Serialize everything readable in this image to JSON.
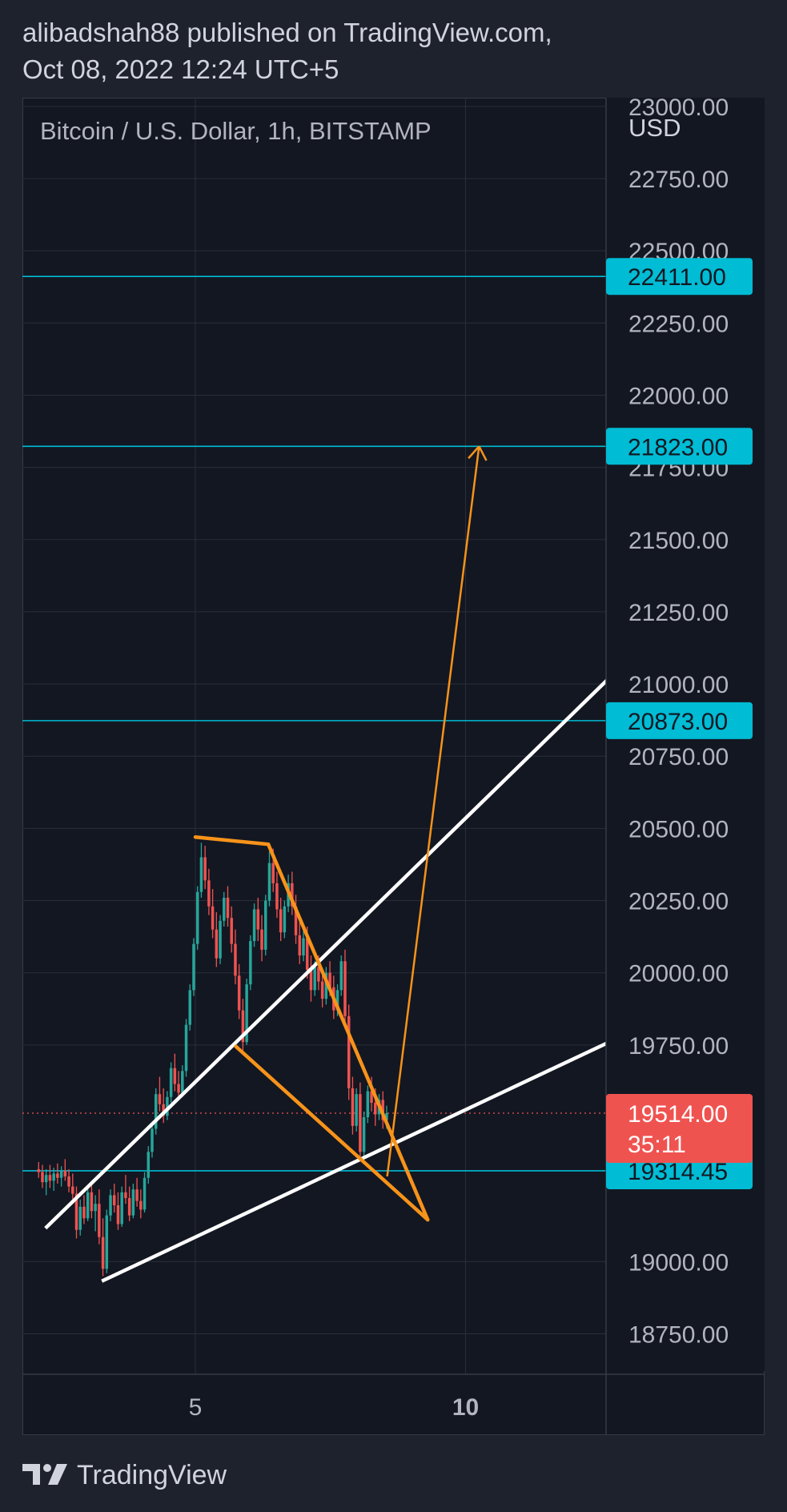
{
  "header": {
    "line1": "alibadshah88 published on TradingView.com,",
    "line2": "Oct 08, 2022 12:24 UTC+5"
  },
  "chart_data": {
    "type": "candlestick",
    "symbol_label": "Bitcoin / U.S. Dollar, 1h, BITSTAMP",
    "currency": "USD",
    "y_ticks": [
      23000,
      22750,
      22500,
      22250,
      22000,
      21750,
      21500,
      21250,
      21000,
      20750,
      20500,
      20250,
      20000,
      19750,
      19000,
      18750
    ],
    "y_tick_labels": [
      "23000.00",
      "22750.00",
      "22500.00",
      "22250.00",
      "22000.00",
      "21750.00",
      "21500.00",
      "21250.00",
      "21000.00",
      "20750.00",
      "20500.00",
      "20250.00",
      "20000.00",
      "19750.00",
      "19000.00",
      "18750.00"
    ],
    "ylim": [
      18610,
      23030
    ],
    "x_ticks": [
      {
        "day": 5,
        "label": "5"
      },
      {
        "day": 10,
        "label": "10"
      }
    ],
    "xlim": [
      1.8,
      12.6
    ],
    "grid": true,
    "horizontal_levels": [
      {
        "price": 22411.0,
        "label": "22411.00",
        "color": "#00bcd4"
      },
      {
        "price": 21823.0,
        "label": "21823.00",
        "color": "#00bcd4"
      },
      {
        "price": 20873.0,
        "label": "20873.00",
        "color": "#00bcd4"
      },
      {
        "price": 19314.45,
        "label": "19314.45",
        "color": "#00bcd4"
      }
    ],
    "last_price": {
      "price": 19514.0,
      "label": "19514.00",
      "countdown": "35:11",
      "color": "#ef5350"
    },
    "channel_lines": [
      {
        "points": [
          [
            2.25,
            19120
          ],
          [
            12.6,
            21010
          ]
        ],
        "color": "#ffffff"
      },
      {
        "points": [
          [
            3.3,
            18935
          ],
          [
            12.6,
            19755
          ]
        ],
        "color": "#ffffff"
      }
    ],
    "wedge": [
      {
        "points": [
          [
            5.0,
            20470
          ],
          [
            6.35,
            20445
          ]
        ],
        "color": "#f7931a"
      },
      {
        "points": [
          [
            6.35,
            20445
          ],
          [
            9.3,
            19145
          ]
        ],
        "color": "#f7931a"
      },
      {
        "points": [
          [
            5.75,
            19745
          ],
          [
            9.3,
            19145
          ]
        ],
        "color": "#f7931a"
      }
    ],
    "projection": {
      "points": [
        [
          8.55,
          19295
        ],
        [
          10.25,
          21823
        ]
      ],
      "color": "#f7931a"
    },
    "candle_colors": {
      "up": "#26a69a",
      "down": "#ef5350"
    },
    "candles": [
      [
        2.1,
        19320,
        19345,
        19290,
        19310
      ],
      [
        2.17,
        19310,
        19335,
        19255,
        19275
      ],
      [
        2.24,
        19275,
        19320,
        19230,
        19300
      ],
      [
        2.31,
        19300,
        19335,
        19255,
        19280
      ],
      [
        2.38,
        19280,
        19325,
        19245,
        19305
      ],
      [
        2.45,
        19305,
        19340,
        19270,
        19290
      ],
      [
        2.52,
        19290,
        19330,
        19260,
        19315
      ],
      [
        2.59,
        19315,
        19355,
        19280,
        19295
      ],
      [
        2.66,
        19295,
        19320,
        19240,
        19260
      ],
      [
        2.73,
        19260,
        19305,
        19215,
        19235
      ],
      [
        2.8,
        19235,
        19260,
        19080,
        19110
      ],
      [
        2.87,
        19110,
        19215,
        19090,
        19190
      ],
      [
        2.94,
        19190,
        19230,
        19130,
        19150
      ],
      [
        3.01,
        19150,
        19260,
        19140,
        19240
      ],
      [
        3.08,
        19240,
        19280,
        19150,
        19175
      ],
      [
        3.15,
        19175,
        19230,
        19105,
        19200
      ],
      [
        3.22,
        19200,
        19250,
        19060,
        19085
      ],
      [
        3.29,
        19085,
        19150,
        18950,
        18975
      ],
      [
        3.36,
        18975,
        19180,
        18960,
        19160
      ],
      [
        3.43,
        19160,
        19250,
        19140,
        19230
      ],
      [
        3.5,
        19230,
        19270,
        19170,
        19195
      ],
      [
        3.57,
        19195,
        19240,
        19110,
        19130
      ],
      [
        3.64,
        19130,
        19260,
        19120,
        19240
      ],
      [
        3.71,
        19240,
        19300,
        19200,
        19220
      ],
      [
        3.78,
        19220,
        19260,
        19140,
        19160
      ],
      [
        3.85,
        19160,
        19270,
        19150,
        19250
      ],
      [
        3.92,
        19250,
        19290,
        19190,
        19210
      ],
      [
        3.99,
        19210,
        19250,
        19150,
        19180
      ],
      [
        4.06,
        19180,
        19310,
        19170,
        19290
      ],
      [
        4.13,
        19290,
        19400,
        19270,
        19380
      ],
      [
        4.2,
        19380,
        19480,
        19360,
        19460
      ],
      [
        4.27,
        19460,
        19600,
        19440,
        19580
      ],
      [
        4.34,
        19580,
        19640,
        19520,
        19545
      ],
      [
        4.41,
        19545,
        19600,
        19480,
        19505
      ],
      [
        4.48,
        19505,
        19590,
        19490,
        19570
      ],
      [
        4.55,
        19570,
        19690,
        19550,
        19670
      ],
      [
        4.62,
        19670,
        19720,
        19590,
        19615
      ],
      [
        4.69,
        19615,
        19660,
        19560,
        19585
      ],
      [
        4.76,
        19585,
        19680,
        19570,
        19660
      ],
      [
        4.83,
        19660,
        19840,
        19640,
        19820
      ],
      [
        4.9,
        19820,
        19960,
        19800,
        19940
      ],
      [
        4.97,
        19940,
        20120,
        19920,
        20100
      ],
      [
        5.04,
        20100,
        20300,
        20080,
        20280
      ],
      [
        5.11,
        20280,
        20450,
        20260,
        20400
      ],
      [
        5.18,
        20400,
        20440,
        20290,
        20320
      ],
      [
        5.25,
        20320,
        20360,
        20200,
        20230
      ],
      [
        5.32,
        20230,
        20290,
        20120,
        20150
      ],
      [
        5.39,
        20150,
        20210,
        20020,
        20050
      ],
      [
        5.46,
        20050,
        20200,
        20030,
        20180
      ],
      [
        5.53,
        20180,
        20280,
        20160,
        20260
      ],
      [
        5.6,
        20260,
        20300,
        20160,
        20190
      ],
      [
        5.67,
        20190,
        20230,
        20070,
        20100
      ],
      [
        5.74,
        20100,
        20150,
        19960,
        19990
      ],
      [
        5.81,
        19990,
        20030,
        19840,
        19870
      ],
      [
        5.88,
        19870,
        19910,
        19720,
        19760
      ],
      [
        5.95,
        19760,
        19980,
        19750,
        19960
      ],
      [
        6.02,
        19960,
        20130,
        19940,
        20110
      ],
      [
        6.09,
        20110,
        20240,
        20090,
        20220
      ],
      [
        6.16,
        20220,
        20260,
        20110,
        20150
      ],
      [
        6.23,
        20150,
        20200,
        20040,
        20080
      ],
      [
        6.3,
        20080,
        20270,
        20060,
        20250
      ],
      [
        6.37,
        20250,
        20420,
        20230,
        20380
      ],
      [
        6.44,
        20380,
        20430,
        20280,
        20310
      ],
      [
        6.51,
        20310,
        20350,
        20190,
        20220
      ],
      [
        6.58,
        20220,
        20260,
        20110,
        20140
      ],
      [
        6.65,
        20140,
        20250,
        20120,
        20230
      ],
      [
        6.72,
        20230,
        20340,
        20210,
        20310
      ],
      [
        6.79,
        20310,
        20350,
        20200,
        20230
      ],
      [
        6.86,
        20230,
        20270,
        20100,
        20130
      ],
      [
        6.93,
        20130,
        20180,
        20030,
        20060
      ],
      [
        7.0,
        20060,
        20150,
        20040,
        20120
      ],
      [
        7.07,
        20120,
        20160,
        19980,
        20010
      ],
      [
        7.14,
        20010,
        20060,
        19900,
        19940
      ],
      [
        7.21,
        19940,
        20040,
        19920,
        20020
      ],
      [
        7.28,
        20020,
        20060,
        19940,
        19970
      ],
      [
        7.35,
        19970,
        20010,
        19880,
        19910
      ],
      [
        7.42,
        19910,
        20020,
        19890,
        20000
      ],
      [
        7.49,
        20000,
        20040,
        19920,
        19950
      ],
      [
        7.56,
        19950,
        19990,
        19840,
        19870
      ],
      [
        7.63,
        19870,
        19960,
        19850,
        19940
      ],
      [
        7.7,
        19940,
        20060,
        19920,
        20040
      ],
      [
        7.77,
        20040,
        20080,
        19820,
        19850
      ],
      [
        7.84,
        19850,
        19890,
        19560,
        19600
      ],
      [
        7.91,
        19600,
        19640,
        19440,
        19470
      ],
      [
        7.98,
        19470,
        19600,
        19450,
        19580
      ],
      [
        8.05,
        19580,
        19620,
        19350,
        19380
      ],
      [
        8.12,
        19380,
        19520,
        19360,
        19500
      ],
      [
        8.19,
        19500,
        19610,
        19480,
        19590
      ],
      [
        8.26,
        19590,
        19640,
        19520,
        19550
      ],
      [
        8.33,
        19550,
        19600,
        19470,
        19510
      ],
      [
        8.4,
        19510,
        19580,
        19490,
        19560
      ],
      [
        8.47,
        19560,
        19590,
        19460,
        19490
      ],
      [
        8.54,
        19490,
        19540,
        19460,
        19514
      ]
    ]
  },
  "footer": {
    "brand": "TradingView"
  }
}
